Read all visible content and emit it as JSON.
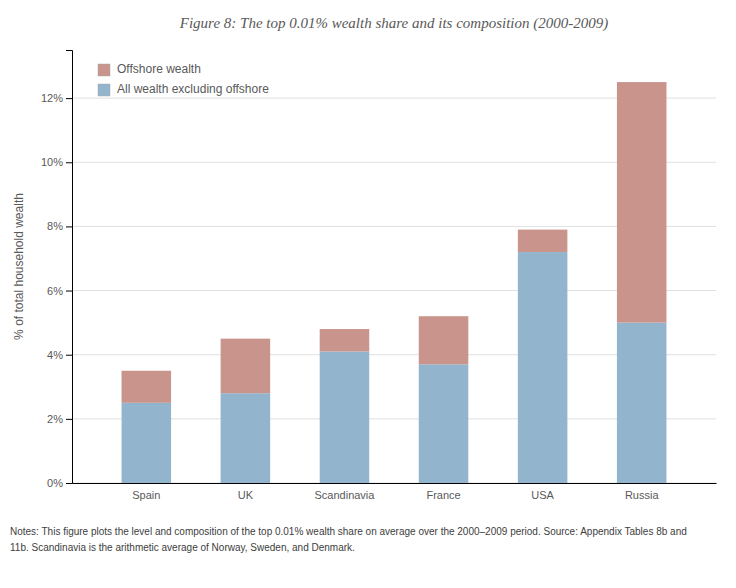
{
  "chart_data": {
    "type": "bar",
    "title": "Figure 8:  The top 0.01% wealth share and its composition (2000-2009)",
    "ylabel": "% of total household wealth",
    "categories": [
      "Spain",
      "UK",
      "Scandinavia",
      "France",
      "USA",
      "Russia"
    ],
    "series": [
      {
        "name": "All wealth excluding offshore",
        "color": "#92b4cd",
        "values": [
          2.5,
          2.8,
          4.1,
          3.7,
          7.2,
          5.0
        ]
      },
      {
        "name": "Offshore wealth",
        "color": "#c9948c",
        "values": [
          1.0,
          1.7,
          0.7,
          1.5,
          0.7,
          7.5
        ]
      }
    ],
    "stacked": true,
    "ylim": [
      0,
      13.5
    ],
    "yticks": [
      {
        "value": 0,
        "label": "0%"
      },
      {
        "value": 2,
        "label": "2%"
      },
      {
        "value": 4,
        "label": "4%"
      },
      {
        "value": 6,
        "label": "6%"
      },
      {
        "value": 8,
        "label": "8%"
      },
      {
        "value": 10,
        "label": "10%"
      },
      {
        "value": 12,
        "label": "12%"
      }
    ],
    "grid": true,
    "legend": "upper left",
    "annotations": [
      "Notes:  This figure plots the level and composition of the top 0.01% wealth share on average over the 2000–2009 period.  Source:  Appendix Tables 8b and",
      "11b.  Scandinavia is the arithmetic average of Norway, Sweden, and Denmark."
    ]
  }
}
